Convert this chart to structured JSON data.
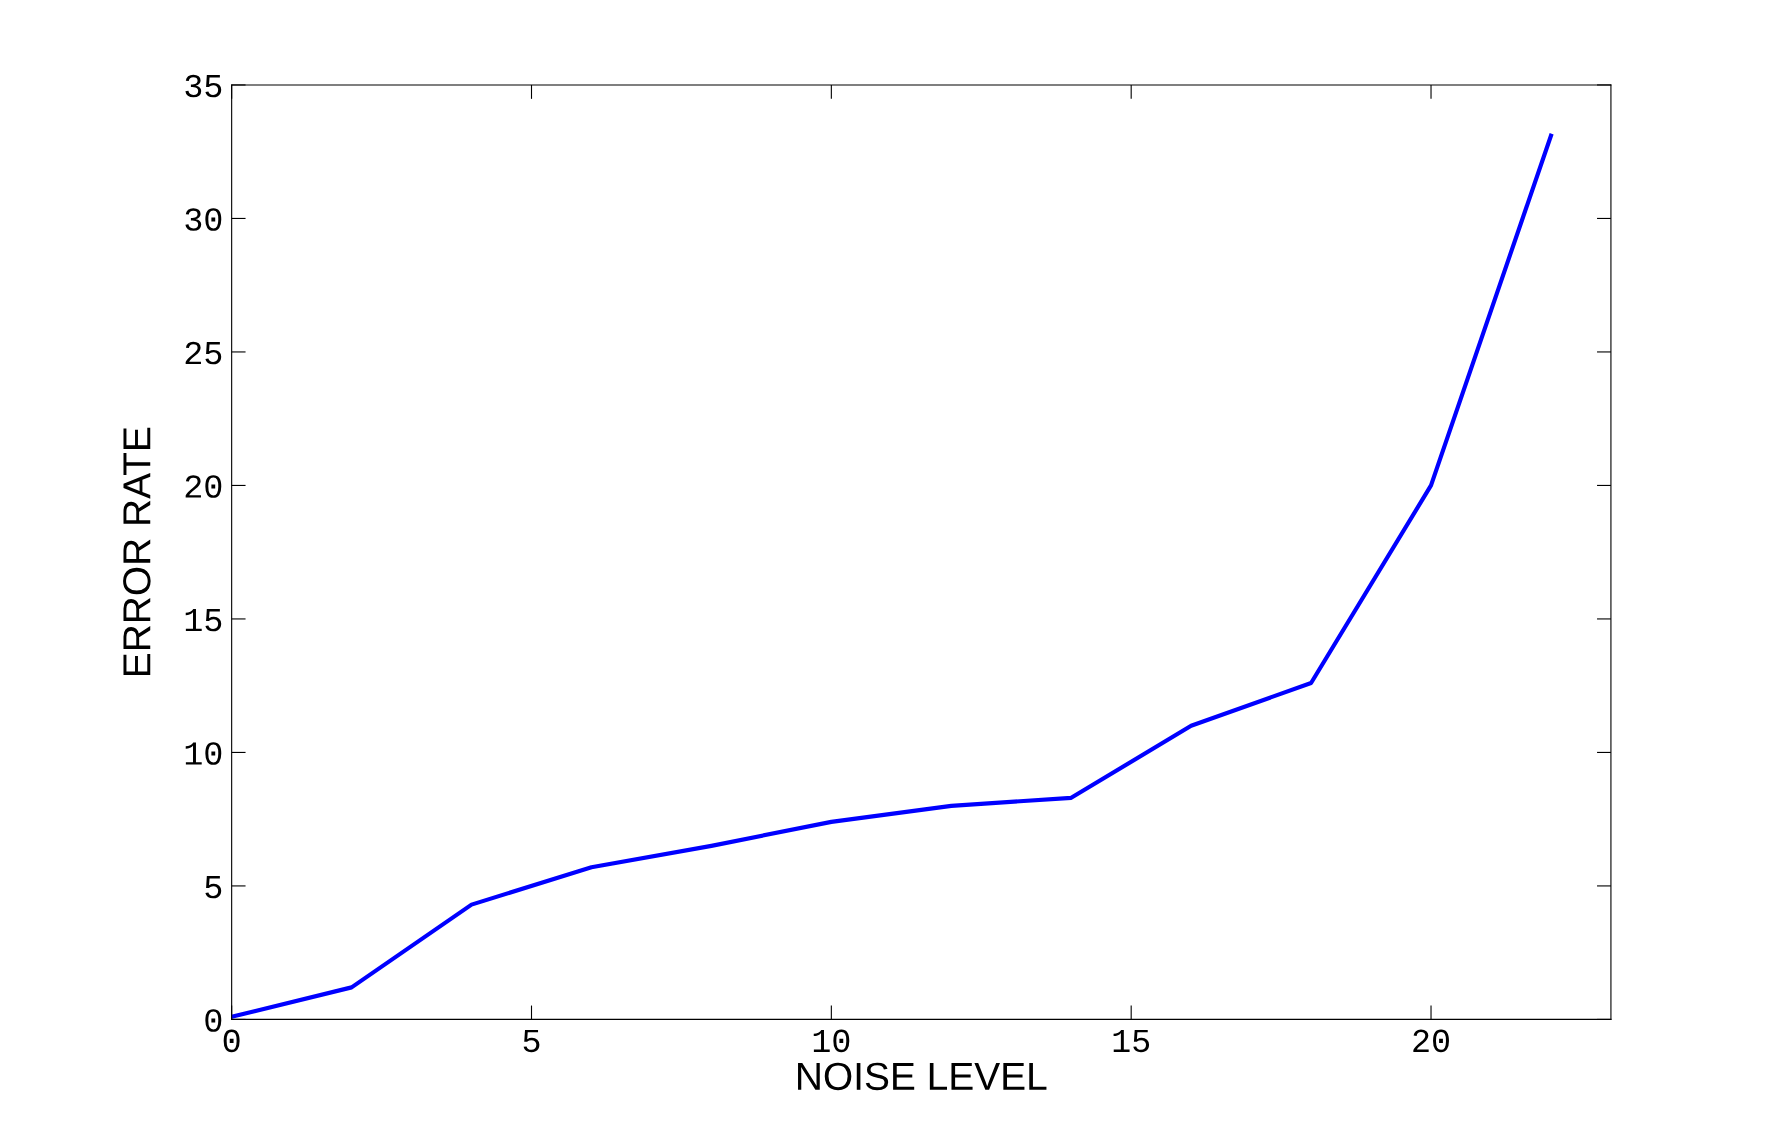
{
  "chart_data": {
    "type": "line",
    "xlabel": "NOISE LEVEL",
    "ylabel": "ERROR RATE",
    "x": [
      0,
      2,
      4,
      6,
      8,
      10,
      12,
      14,
      16,
      18,
      20,
      22
    ],
    "series": [
      {
        "color": "#0000ff",
        "values": [
          0.1,
          1.2,
          4.3,
          5.7,
          6.5,
          7.4,
          8.0,
          8.3,
          11.0,
          12.6,
          20.0,
          33.1
        ]
      }
    ],
    "xlim": [
      0,
      23
    ],
    "xticks": [
      0,
      5,
      10,
      15,
      20
    ],
    "ylim": [
      0,
      35
    ],
    "yticks": [
      0,
      5,
      10,
      15,
      20,
      25,
      30,
      35
    ],
    "grid": false,
    "marker": "none",
    "line_style": "solid"
  }
}
